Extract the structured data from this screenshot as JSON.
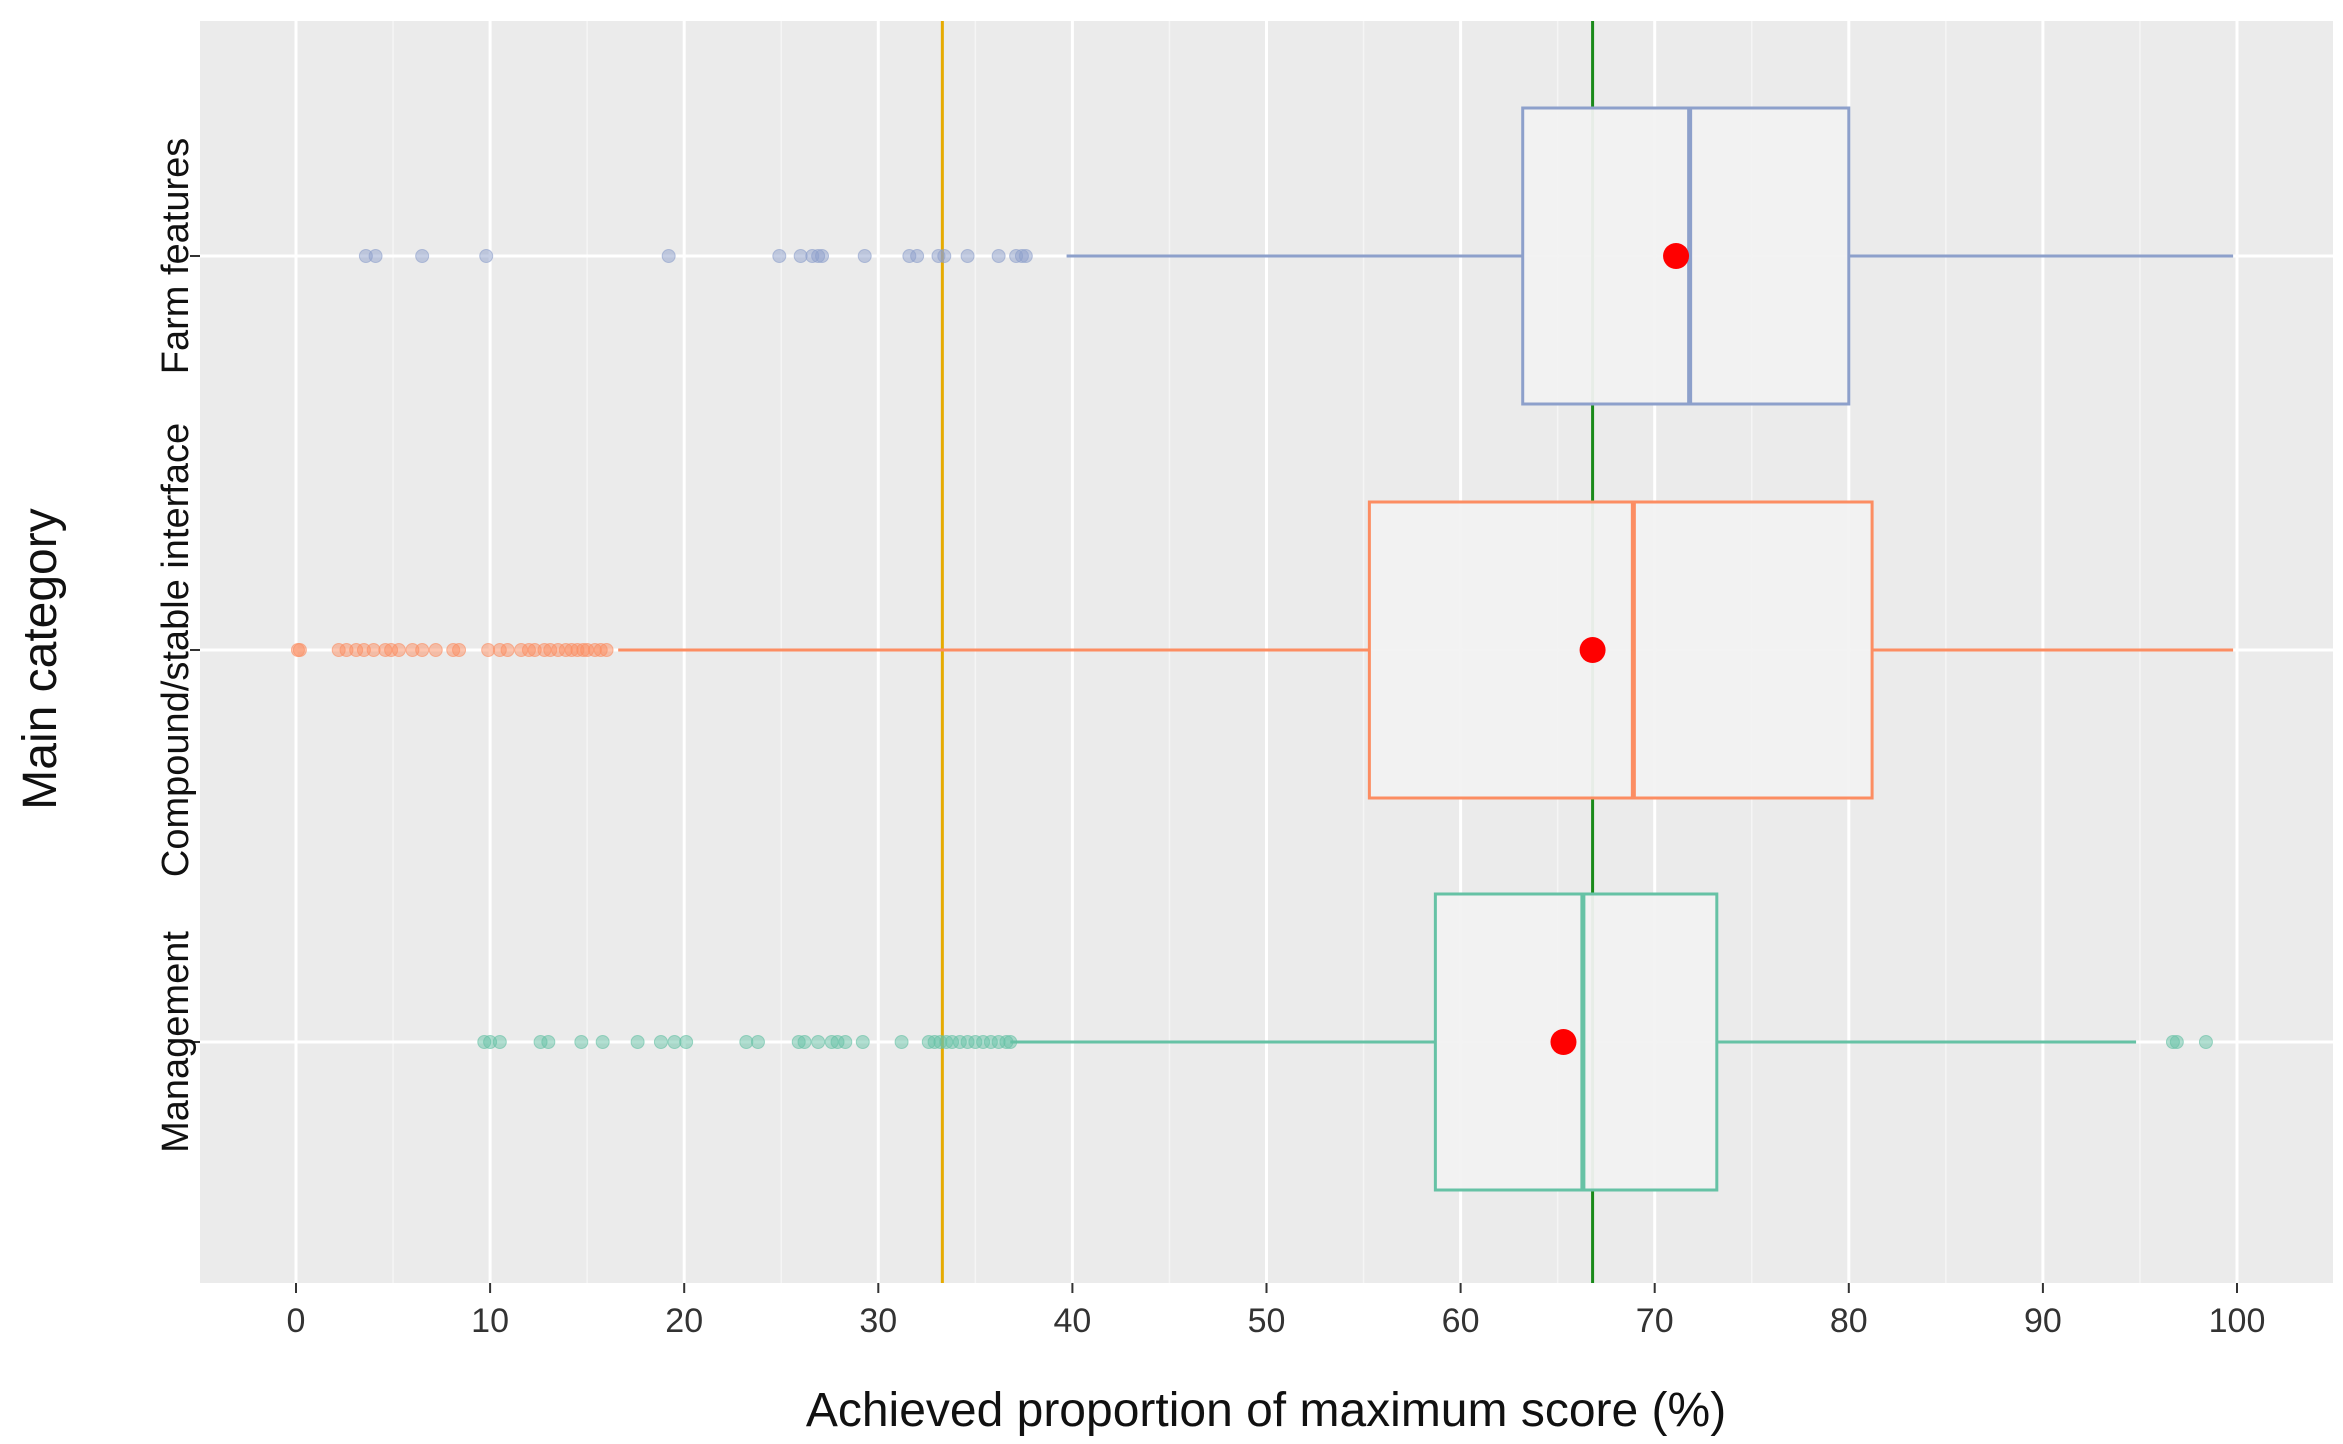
{
  "chart_data": {
    "type": "boxplot",
    "orientation": "horizontal",
    "xlabel": "Achieved proportion of maximum score (%)",
    "ylabel": "Main category",
    "xlim": [
      -5,
      105
    ],
    "xticks": [
      0,
      10,
      20,
      30,
      40,
      50,
      60,
      70,
      80,
      90,
      100
    ],
    "grid": true,
    "reference_lines": [
      {
        "name": "one-third line",
        "value": 33.3,
        "color": "#E6AB02"
      },
      {
        "name": "overall mean line",
        "value": 66.8,
        "color": "#1A8A1A"
      }
    ],
    "mean_marker_color": "#FF0000",
    "categories": [
      {
        "name": "Farm features",
        "color": "#8DA0CB",
        "whisker_low": 39.7,
        "q1": 63.2,
        "median": 71.8,
        "q3": 80.0,
        "whisker_high": 99.8,
        "mean": 71.1,
        "outliers": [
          3.6,
          4.1,
          6.5,
          9.8,
          19.2,
          24.9,
          26.0,
          26.6,
          26.9,
          27.1,
          29.3,
          31.6,
          32.0,
          33.1,
          33.4,
          34.6,
          36.2,
          37.1,
          37.4,
          37.6
        ]
      },
      {
        "name": "Compound/stable interface",
        "color": "#FC8D62",
        "whisker_low": 16.6,
        "q1": 55.3,
        "median": 68.9,
        "q3": 81.2,
        "whisker_high": 99.8,
        "mean": 66.8,
        "outliers": [
          0.1,
          0.2,
          2.2,
          2.6,
          3.1,
          3.5,
          4.0,
          4.6,
          4.9,
          5.3,
          6.0,
          6.5,
          7.2,
          8.1,
          8.4,
          9.9,
          10.5,
          10.9,
          11.6,
          12.0,
          12.3,
          12.8,
          13.1,
          13.5,
          13.9,
          14.2,
          14.5,
          14.8,
          15.0,
          15.4,
          15.7,
          16.0
        ]
      },
      {
        "name": "Management",
        "color": "#66C2A5",
        "whisker_low": 36.8,
        "q1": 58.7,
        "median": 66.3,
        "q3": 73.2,
        "whisker_high": 94.8,
        "mean": 65.3,
        "outliers": [
          9.7,
          10.0,
          10.5,
          12.6,
          13.0,
          14.7,
          15.8,
          17.6,
          18.8,
          19.5,
          20.1,
          23.2,
          23.8,
          25.9,
          26.2,
          26.9,
          27.6,
          27.9,
          28.3,
          29.2,
          31.2,
          32.6,
          32.9,
          33.2,
          33.5,
          33.8,
          34.2,
          34.6,
          35.0,
          35.4,
          35.8,
          36.2,
          36.6,
          36.8,
          96.7,
          96.9,
          98.4
        ]
      }
    ]
  }
}
